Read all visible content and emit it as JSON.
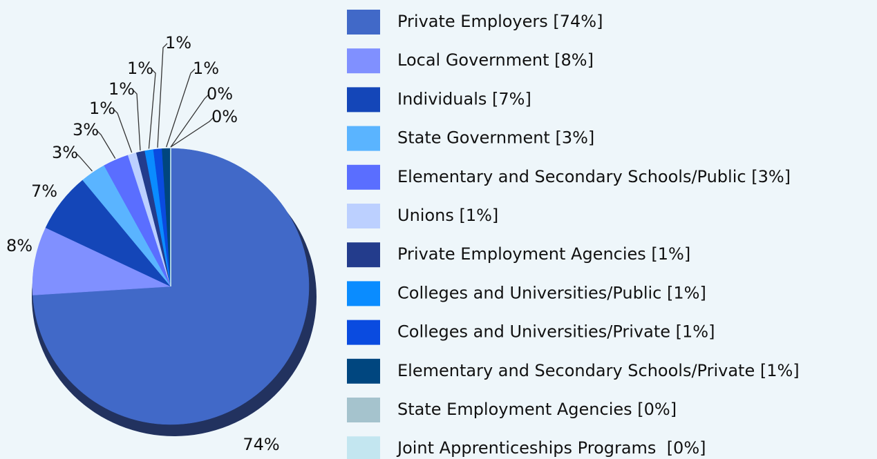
{
  "chart_data": {
    "type": "pie",
    "categories": [
      "Private Employers [74%]",
      "Local Government [8%]",
      "Individuals [7%]",
      "State Government [3%]",
      "Elementary and Secondary Schools/Public [3%]",
      "Unions [1%]",
      "Private Employment Agencies [1%]",
      "Colleges and Universities/Public [1%]",
      "Colleges and Universities/Private [1%]",
      "Elementary and Secondary Schools/Private [1%]",
      "State Employment Agencies [0%]",
      "Joint Apprenticeships Programs  [0%]"
    ],
    "values": [
      74,
      8,
      7,
      3,
      3,
      1,
      1,
      1,
      1,
      1,
      0,
      0
    ],
    "value_labels": [
      "74%",
      "8%",
      "7%",
      "3%",
      "3%",
      "1%",
      "1%",
      "1%",
      "1%",
      "1%",
      "0%",
      "0%"
    ],
    "colors": [
      "#4169c8",
      "#8090ff",
      "#1446b8",
      "#5ab4ff",
      "#5a6eff",
      "#bcd0ff",
      "#233c8c",
      "#0a8cff",
      "#0a4be0",
      "#00467f",
      "#a5c3cd",
      "#c3e6f0"
    ],
    "legend": "right"
  }
}
